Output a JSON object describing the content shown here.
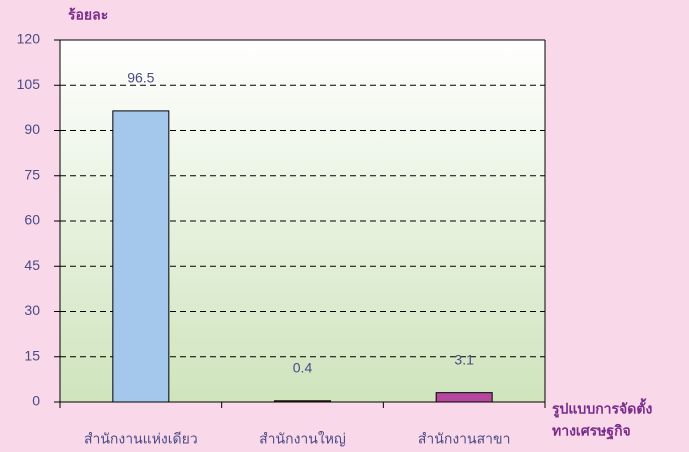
{
  "chart_data": {
    "type": "bar",
    "y_label": "ร้อยละ",
    "x_label": [
      "รูปแบบการจัดตั้ง",
      "ทางเศรษฐกิจ"
    ],
    "categories": [
      "สำนักงานแห่งเดียว",
      "สำนักงานใหญ่",
      "สำนักงานสาขา"
    ],
    "values": [
      96.5,
      0.4,
      3.1
    ],
    "colors": [
      "#a3c8ec",
      "#9b3b3b",
      "#b5489e"
    ],
    "ylim": [
      0,
      120
    ],
    "yticks": [
      0,
      15,
      30,
      45,
      60,
      75,
      90,
      105,
      120
    ],
    "grid": true
  }
}
